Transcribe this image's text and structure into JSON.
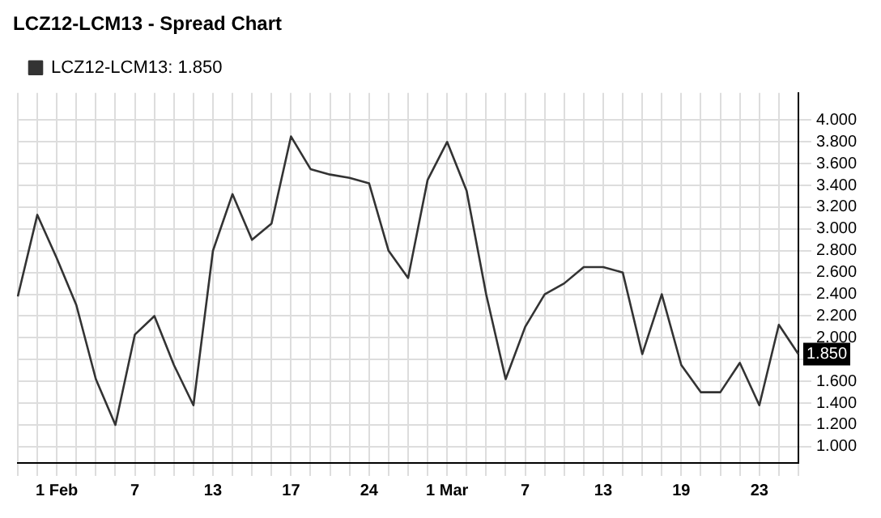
{
  "chart_data": {
    "type": "line",
    "title": "LCZ12-LCM13 - Spread Chart",
    "categories": [
      null,
      null,
      "1 Feb",
      null,
      null,
      null,
      "7",
      null,
      null,
      null,
      "13",
      null,
      null,
      null,
      "17",
      null,
      null,
      null,
      "24",
      null,
      null,
      null,
      "1 Mar",
      null,
      null,
      null,
      "7",
      null,
      null,
      null,
      "13",
      null,
      null,
      null,
      "19",
      null,
      null,
      null,
      "23",
      null,
      null
    ],
    "series": [
      {
        "name": "LCZ12-LCM13: 1.850",
        "color": "#333333",
        "values": [
          2.38,
          3.13,
          2.73,
          2.3,
          1.62,
          1.2,
          2.03,
          2.2,
          1.75,
          1.38,
          2.8,
          3.32,
          2.9,
          3.05,
          3.85,
          3.55,
          3.5,
          3.47,
          3.42,
          2.8,
          2.55,
          3.45,
          3.8,
          3.35,
          2.4,
          1.62,
          2.1,
          2.4,
          2.5,
          2.65,
          2.65,
          2.6,
          1.85,
          2.4,
          1.75,
          1.5,
          1.5,
          1.77,
          1.38,
          2.12,
          1.85
        ]
      }
    ],
    "ylim": [
      0.85,
      4.25
    ],
    "yticks": [
      {
        "value": 1,
        "label": "1.000"
      },
      {
        "value": 1.2,
        "label": "1.200"
      },
      {
        "value": 1.4,
        "label": "1.400"
      },
      {
        "value": 1.6,
        "label": "1.600"
      },
      {
        "value": 1.8,
        "label": null
      },
      {
        "value": 2,
        "label": "2.000"
      },
      {
        "value": 2.2,
        "label": "2.200"
      },
      {
        "value": 2.4,
        "label": "2.400"
      },
      {
        "value": 2.6,
        "label": "2.600"
      },
      {
        "value": 2.8,
        "label": "2.800"
      },
      {
        "value": 3,
        "label": "3.000"
      },
      {
        "value": 3.2,
        "label": "3.200"
      },
      {
        "value": 3.4,
        "label": "3.400"
      },
      {
        "value": 3.6,
        "label": "3.600"
      },
      {
        "value": 3.8,
        "label": "3.800"
      },
      {
        "value": 4,
        "label": "4.000"
      }
    ],
    "annotations": [
      "1.850"
    ],
    "grid": true,
    "legend": "top left",
    "marker": "none",
    "line_style": "solid"
  }
}
